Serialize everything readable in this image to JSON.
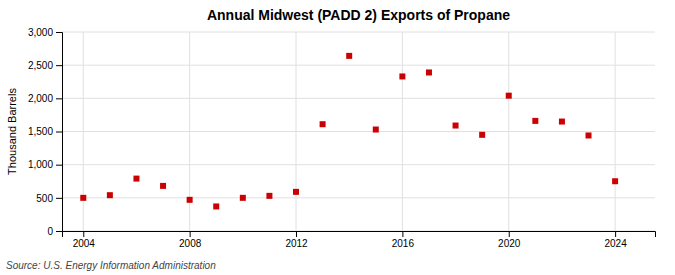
{
  "chart_data": {
    "type": "scatter",
    "title": "Annual Midwest (PADD 2) Exports of Propane",
    "ylabel": "Thousand Barrels",
    "annotation": "Source: U.S. Energy Information Administration",
    "x": [
      2004,
      2005,
      2006,
      2007,
      2008,
      2009,
      2010,
      2011,
      2012,
      2013,
      2014,
      2015,
      2016,
      2017,
      2018,
      2019,
      2020,
      2021,
      2022,
      2023,
      2024
    ],
    "values": [
      500,
      540,
      790,
      680,
      470,
      370,
      500,
      530,
      590,
      1610,
      2640,
      1530,
      2330,
      2390,
      1590,
      1450,
      2040,
      1660,
      1650,
      1440,
      750
    ],
    "color": "#cc0000",
    "marker": "square",
    "xlim": [
      2003.2,
      2025.5
    ],
    "ylim": [
      0,
      3000
    ],
    "xticks": [
      2004,
      2008,
      2012,
      2016,
      2020,
      2024
    ],
    "yticks": [
      0,
      500,
      {
        "value": 1000,
        "label": "1,000"
      },
      {
        "value": 1500,
        "label": "1,500"
      },
      {
        "value": 2000,
        "label": "2,000"
      },
      {
        "value": 2500,
        "label": "2,500"
      },
      {
        "value": 3000,
        "label": "3,000"
      }
    ],
    "grid": true
  }
}
